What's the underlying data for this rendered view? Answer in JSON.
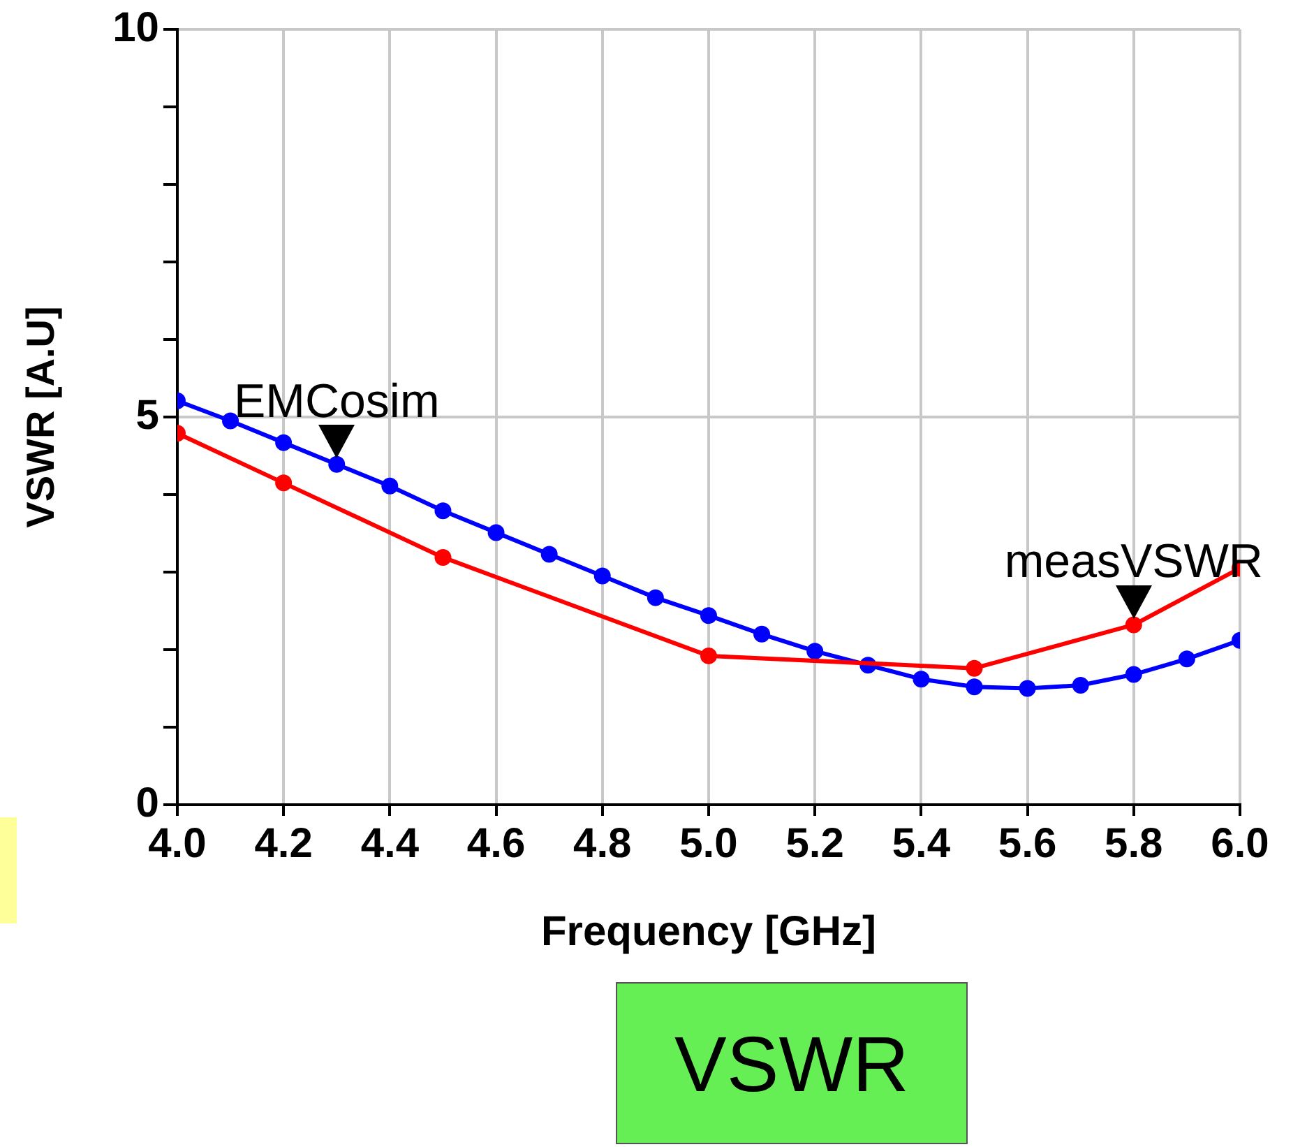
{
  "chart_data": {
    "type": "line",
    "xlabel": "Frequency [GHz]",
    "ylabel": "VSWR [A.U]",
    "xlim": [
      4.0,
      6.0
    ],
    "xticks": [
      {
        "value": 4.0,
        "label": "4.0"
      },
      {
        "value": 4.2,
        "label": "4.2"
      },
      {
        "value": 4.4,
        "label": "4.4"
      },
      {
        "value": 4.6,
        "label": "4.6"
      },
      {
        "value": 4.8,
        "label": "4.8"
      },
      {
        "value": 5.0,
        "label": "5.0"
      },
      {
        "value": 5.2,
        "label": "5.2"
      },
      {
        "value": 5.4,
        "label": "5.4"
      },
      {
        "value": 5.6,
        "label": "5.6"
      },
      {
        "value": 5.8,
        "label": "5.8"
      },
      {
        "value": 6.0,
        "label": "6.0"
      }
    ],
    "ylim": [
      0,
      10
    ],
    "yticks": [
      0,
      {
        "value": 1,
        "label": null
      },
      {
        "value": 2,
        "label": null
      },
      {
        "value": 3,
        "label": null
      },
      {
        "value": 4,
        "label": null
      },
      5,
      {
        "value": 6,
        "label": null
      },
      {
        "value": 7,
        "label": null
      },
      {
        "value": 8,
        "label": null
      },
      {
        "value": 9,
        "label": null
      },
      10
    ],
    "grid": true,
    "marker": "circle",
    "line_style": "solid",
    "series": [
      {
        "color": "#ff0000",
        "x": [
          4.0,
          4.2,
          4.5,
          5.0,
          5.5,
          5.8,
          6.0
        ],
        "values": [
          4.79,
          4.15,
          3.19,
          1.92,
          1.76,
          2.32,
          3.05
        ]
      },
      {
        "color": "#0000ff",
        "x": [
          4.0,
          4.1,
          4.2,
          4.3,
          4.4,
          4.5,
          4.6,
          4.7,
          4.8,
          4.9,
          5.0,
          5.1,
          5.2,
          5.3,
          5.4,
          5.5,
          5.6,
          5.7,
          5.8,
          5.9,
          6.0
        ],
        "values": [
          5.21,
          4.95,
          4.67,
          4.39,
          4.11,
          3.79,
          3.51,
          3.23,
          2.95,
          2.67,
          2.44,
          2.2,
          1.98,
          1.8,
          1.62,
          1.52,
          1.5,
          1.54,
          1.68,
          1.88,
          2.12
        ]
      }
    ],
    "annotations": [
      {
        "text": "EMCosim",
        "x": 4.3,
        "y": 4.39
      },
      {
        "text": "measVSWR",
        "x": 5.8,
        "y": 2.32
      },
      "VSWR"
    ]
  }
}
